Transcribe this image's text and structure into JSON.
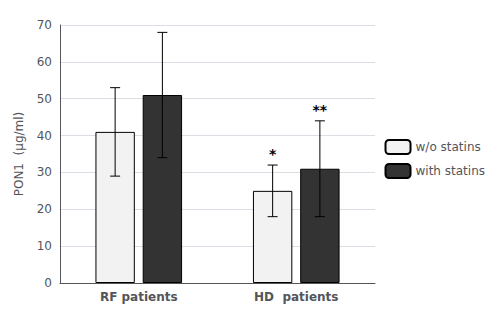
{
  "chart_data": {
    "type": "bar",
    "categories": [
      "RF patients",
      "HD  patients"
    ],
    "series": [
      {
        "name": "w/o statins",
        "color": "#f2f2f2",
        "values": [
          41,
          25
        ],
        "errors": [
          12,
          7
        ]
      },
      {
        "name": "with statins",
        "color": "#333333",
        "values": [
          51,
          31
        ],
        "errors": [
          17,
          13
        ]
      }
    ],
    "ylabel": "PON1  (μg/ml)",
    "ylim": [
      0,
      70
    ],
    "yticks": [
      0,
      10,
      20,
      30,
      40,
      50,
      60,
      70
    ],
    "grid": true,
    "legend": "right",
    "annotations": [
      {
        "text": "*",
        "category": "HD  patients",
        "series": "w/o statins"
      },
      {
        "text": "**",
        "category": "HD  patients",
        "series": "with statins"
      }
    ]
  }
}
